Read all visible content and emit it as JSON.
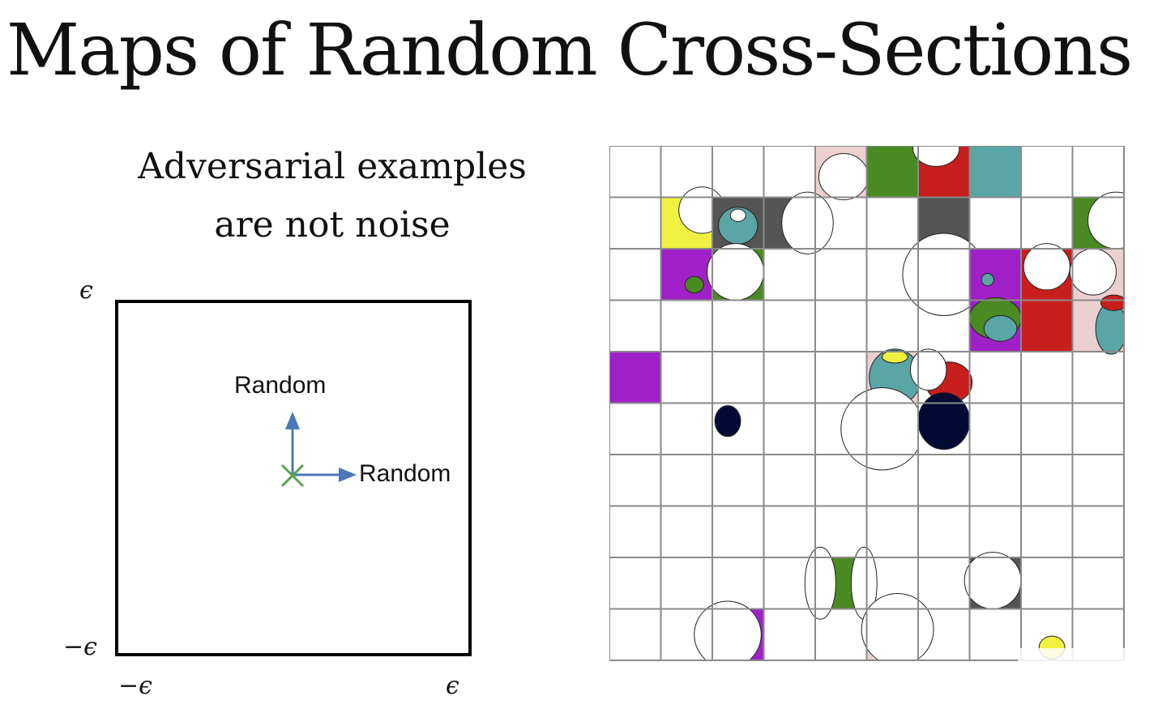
{
  "slide": {
    "title": "Maps of Random Cross-Sections",
    "subtitle_line1": "Adversarial examples",
    "subtitle_line2": "are not noise"
  },
  "diagram": {
    "axis_labels": {
      "y_top": "ϵ",
      "y_bottom": "−ϵ",
      "x_left": "−ϵ",
      "x_right": "ϵ"
    },
    "direction_up_label": "Random",
    "direction_right_label": "Random",
    "origin_marker": "x-mark-icon",
    "arrow_color": "#4a78b8",
    "origin_color": "#5aa050"
  },
  "grid": {
    "rows": 10,
    "cols": 10,
    "colors": {
      "green": "#4a8a22",
      "red": "#c81e1e",
      "teal": "#5aa5a5",
      "yellow": "#f0f040",
      "dark_gray": "#555555",
      "magenta": "#a020c8",
      "pink": "#ecd0d0",
      "navy": "#050a35"
    }
  }
}
